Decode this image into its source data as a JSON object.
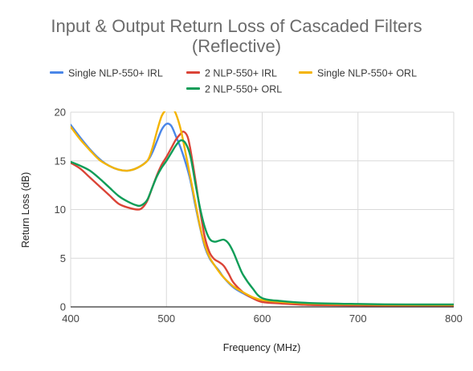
{
  "chart_data": {
    "type": "line",
    "title": "Input & Output Return Loss of Cascaded Filters",
    "subtitle": "(Reflective)",
    "xlabel": "Frequency (MHz)",
    "ylabel": "Return Loss (dB)",
    "xlim": [
      400,
      800
    ],
    "ylim": [
      0,
      20
    ],
    "xticks": [
      400,
      500,
      600,
      700,
      800
    ],
    "yticks": [
      0,
      5,
      10,
      15,
      20
    ],
    "grid": true,
    "legend_position": "top",
    "series": [
      {
        "name": "Single NLP-550+ IRL",
        "color": "#4a86e8",
        "points": [
          [
            400,
            18.7
          ],
          [
            410,
            17.4
          ],
          [
            420,
            16.2
          ],
          [
            430,
            15.2
          ],
          [
            440,
            14.5
          ],
          [
            450,
            14.1
          ],
          [
            460,
            14.0
          ],
          [
            470,
            14.3
          ],
          [
            480,
            15.0
          ],
          [
            485,
            15.8
          ],
          [
            490,
            17.0
          ],
          [
            495,
            18.2
          ],
          [
            500,
            18.8
          ],
          [
            505,
            18.6
          ],
          [
            510,
            17.5
          ],
          [
            515,
            16.3
          ],
          [
            520,
            14.8
          ],
          [
            525,
            13.0
          ],
          [
            530,
            10.5
          ],
          [
            535,
            8.2
          ],
          [
            540,
            6.2
          ],
          [
            545,
            5.0
          ],
          [
            550,
            4.3
          ],
          [
            555,
            3.7
          ],
          [
            560,
            3.0
          ],
          [
            570,
            2.0
          ],
          [
            580,
            1.4
          ],
          [
            590,
            0.9
          ],
          [
            600,
            0.6
          ],
          [
            620,
            0.4
          ],
          [
            650,
            0.3
          ],
          [
            700,
            0.2
          ],
          [
            750,
            0.15
          ],
          [
            800,
            0.1
          ]
        ]
      },
      {
        "name": "2 NLP-550+ IRL",
        "color": "#db4437",
        "points": [
          [
            400,
            14.8
          ],
          [
            410,
            14.2
          ],
          [
            420,
            13.3
          ],
          [
            430,
            12.4
          ],
          [
            440,
            11.5
          ],
          [
            450,
            10.6
          ],
          [
            460,
            10.2
          ],
          [
            470,
            10.0
          ],
          [
            475,
            10.2
          ],
          [
            480,
            10.9
          ],
          [
            485,
            12.2
          ],
          [
            490,
            13.5
          ],
          [
            495,
            14.6
          ],
          [
            500,
            15.4
          ],
          [
            505,
            16.3
          ],
          [
            510,
            17.2
          ],
          [
            515,
            17.8
          ],
          [
            518,
            18.0
          ],
          [
            522,
            17.5
          ],
          [
            525,
            16.2
          ],
          [
            530,
            13.2
          ],
          [
            535,
            10.0
          ],
          [
            540,
            7.2
          ],
          [
            545,
            5.6
          ],
          [
            550,
            4.9
          ],
          [
            555,
            4.6
          ],
          [
            560,
            4.2
          ],
          [
            565,
            3.4
          ],
          [
            570,
            2.5
          ],
          [
            580,
            1.5
          ],
          [
            590,
            0.9
          ],
          [
            600,
            0.5
          ],
          [
            620,
            0.35
          ],
          [
            650,
            0.2
          ],
          [
            700,
            0.15
          ],
          [
            750,
            0.1
          ],
          [
            800,
            0.1
          ]
        ]
      },
      {
        "name": "Single NLP-550+ ORL",
        "color": "#f4b400",
        "points": [
          [
            400,
            18.5
          ],
          [
            410,
            17.2
          ],
          [
            420,
            16.1
          ],
          [
            430,
            15.1
          ],
          [
            440,
            14.5
          ],
          [
            450,
            14.1
          ],
          [
            460,
            14.0
          ],
          [
            470,
            14.3
          ],
          [
            480,
            15.0
          ],
          [
            485,
            16.2
          ],
          [
            490,
            18.0
          ],
          [
            495,
            19.6
          ],
          [
            500,
            20.3
          ],
          [
            505,
            20.6
          ],
          [
            510,
            19.8
          ],
          [
            515,
            18.2
          ],
          [
            520,
            15.8
          ],
          [
            525,
            13.3
          ],
          [
            530,
            10.8
          ],
          [
            535,
            8.3
          ],
          [
            540,
            6.4
          ],
          [
            545,
            5.1
          ],
          [
            550,
            4.3
          ],
          [
            555,
            3.6
          ],
          [
            560,
            3.0
          ],
          [
            570,
            2.1
          ],
          [
            580,
            1.5
          ],
          [
            590,
            1.0
          ],
          [
            600,
            0.7
          ],
          [
            620,
            0.5
          ],
          [
            650,
            0.35
          ],
          [
            700,
            0.25
          ],
          [
            750,
            0.2
          ],
          [
            800,
            0.2
          ]
        ]
      },
      {
        "name": "2 NLP-550+ ORL",
        "color": "#0f9d58",
        "points": [
          [
            400,
            14.9
          ],
          [
            410,
            14.5
          ],
          [
            420,
            14.0
          ],
          [
            430,
            13.2
          ],
          [
            440,
            12.3
          ],
          [
            450,
            11.4
          ],
          [
            460,
            10.8
          ],
          [
            470,
            10.4
          ],
          [
            475,
            10.5
          ],
          [
            480,
            11.0
          ],
          [
            485,
            12.2
          ],
          [
            490,
            13.4
          ],
          [
            495,
            14.3
          ],
          [
            500,
            15.0
          ],
          [
            505,
            15.8
          ],
          [
            510,
            16.6
          ],
          [
            515,
            17.1
          ],
          [
            520,
            16.8
          ],
          [
            525,
            15.5
          ],
          [
            530,
            12.8
          ],
          [
            535,
            10.2
          ],
          [
            540,
            8.2
          ],
          [
            545,
            7.0
          ],
          [
            550,
            6.7
          ],
          [
            555,
            6.8
          ],
          [
            560,
            6.9
          ],
          [
            565,
            6.5
          ],
          [
            570,
            5.6
          ],
          [
            575,
            4.4
          ],
          [
            580,
            3.3
          ],
          [
            590,
            1.9
          ],
          [
            600,
            0.9
          ],
          [
            620,
            0.6
          ],
          [
            650,
            0.4
          ],
          [
            700,
            0.3
          ],
          [
            750,
            0.25
          ],
          [
            800,
            0.25
          ]
        ]
      }
    ]
  }
}
